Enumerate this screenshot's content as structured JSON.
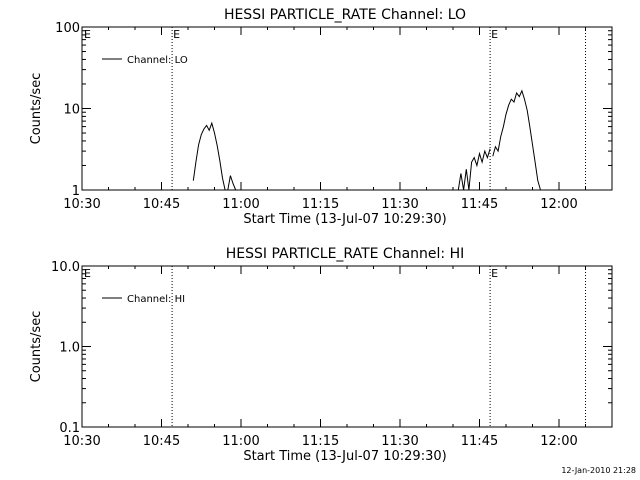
{
  "chart_data": [
    {
      "type": "line",
      "title": "HESSI PARTICLE_RATE Channel: LO",
      "xlabel": "Start Time (13-Jul-07 10:29:30)",
      "ylabel": "Counts/sec",
      "yscale": "log",
      "ylim": [
        1,
        100
      ],
      "xlim": [
        "10:30",
        "12:10"
      ],
      "x_ticks": [
        "10:30",
        "10:45",
        "11:00",
        "11:15",
        "11:30",
        "11:45",
        "12:00"
      ],
      "y_ticks": [
        "1",
        "10",
        "100"
      ],
      "legend": {
        "placement": "top-left",
        "entries": [
          "Channel: LO"
        ]
      },
      "markers": [
        {
          "time": "10:47",
          "label": "E"
        },
        {
          "time": "11:47",
          "label": "E"
        },
        {
          "time": "12:05",
          "label": ""
        }
      ],
      "edge_labels": [
        {
          "label": "E",
          "placement": "top-left"
        }
      ],
      "series": [
        {
          "name": "Channel: LO",
          "segments": [
            {
              "x": [
                "10:51:00",
                "10:51:30",
                "10:52:00",
                "10:52:30",
                "10:53:00",
                "10:53:30",
                "10:54:00",
                "10:54:30",
                "10:55:00",
                "10:55:30",
                "10:56:00",
                "10:56:30",
                "10:57:00"
              ],
              "y": [
                1.3,
                2.2,
                3.6,
                4.8,
                5.6,
                6.2,
                5.4,
                6.6,
                5.0,
                3.5,
                2.3,
                1.4,
                1.0
              ]
            },
            {
              "x": [
                "10:57:30",
                "10:58:00",
                "10:58:30",
                "10:59:00"
              ],
              "y": [
                1.0,
                1.5,
                1.2,
                1.0
              ]
            },
            {
              "x": [
                "11:41:00",
                "11:41:30",
                "11:42:00",
                "11:42:30",
                "11:43:00",
                "11:43:30",
                "11:44:00",
                "11:44:30",
                "11:45:00",
                "11:45:30",
                "11:46:00",
                "11:46:30",
                "11:47:00"
              ],
              "y": [
                1.0,
                1.6,
                1.0,
                1.8,
                1.0,
                2.2,
                2.5,
                2.0,
                2.8,
                2.2,
                3.0,
                2.5,
                3.2
              ]
            },
            {
              "x": [
                "11:47:30",
                "11:48:00",
                "11:48:30",
                "11:49:00",
                "11:49:30",
                "11:50:00",
                "11:50:30",
                "11:51:00",
                "11:51:30",
                "11:52:00",
                "11:52:30",
                "11:53:00",
                "11:53:30",
                "11:54:00",
                "11:54:30",
                "11:55:00",
                "11:55:30",
                "11:56:00",
                "11:56:30"
              ],
              "y": [
                2.6,
                3.4,
                3.0,
                4.5,
                6.0,
                8.5,
                11.0,
                13.0,
                12.0,
                15.5,
                14.0,
                16.5,
                13.0,
                9.5,
                6.0,
                3.6,
                2.2,
                1.3,
                1.0
              ]
            }
          ]
        }
      ]
    },
    {
      "type": "line",
      "title": "HESSI PARTICLE_RATE Channel: HI",
      "xlabel": "Start Time (13-Jul-07 10:29:30)",
      "ylabel": "Counts/sec",
      "yscale": "log",
      "ylim": [
        0.1,
        10.0
      ],
      "xlim": [
        "10:30",
        "12:10"
      ],
      "x_ticks": [
        "10:30",
        "10:45",
        "11:00",
        "11:15",
        "11:30",
        "11:45",
        "12:00"
      ],
      "y_ticks": [
        "0.1",
        "1.0",
        "10.0"
      ],
      "legend": {
        "placement": "top-left",
        "entries": [
          "Channel: HI"
        ]
      },
      "markers": [
        {
          "time": "10:47",
          "label": ""
        },
        {
          "time": "11:47",
          "label": "E"
        },
        {
          "time": "12:05",
          "label": ""
        }
      ],
      "edge_labels": [
        {
          "label": "E",
          "placement": "top-left"
        }
      ],
      "series": [
        {
          "name": "Channel: HI",
          "segments": []
        }
      ]
    }
  ],
  "footer": {
    "timestamp": "12-Jan-2010 21:28"
  }
}
